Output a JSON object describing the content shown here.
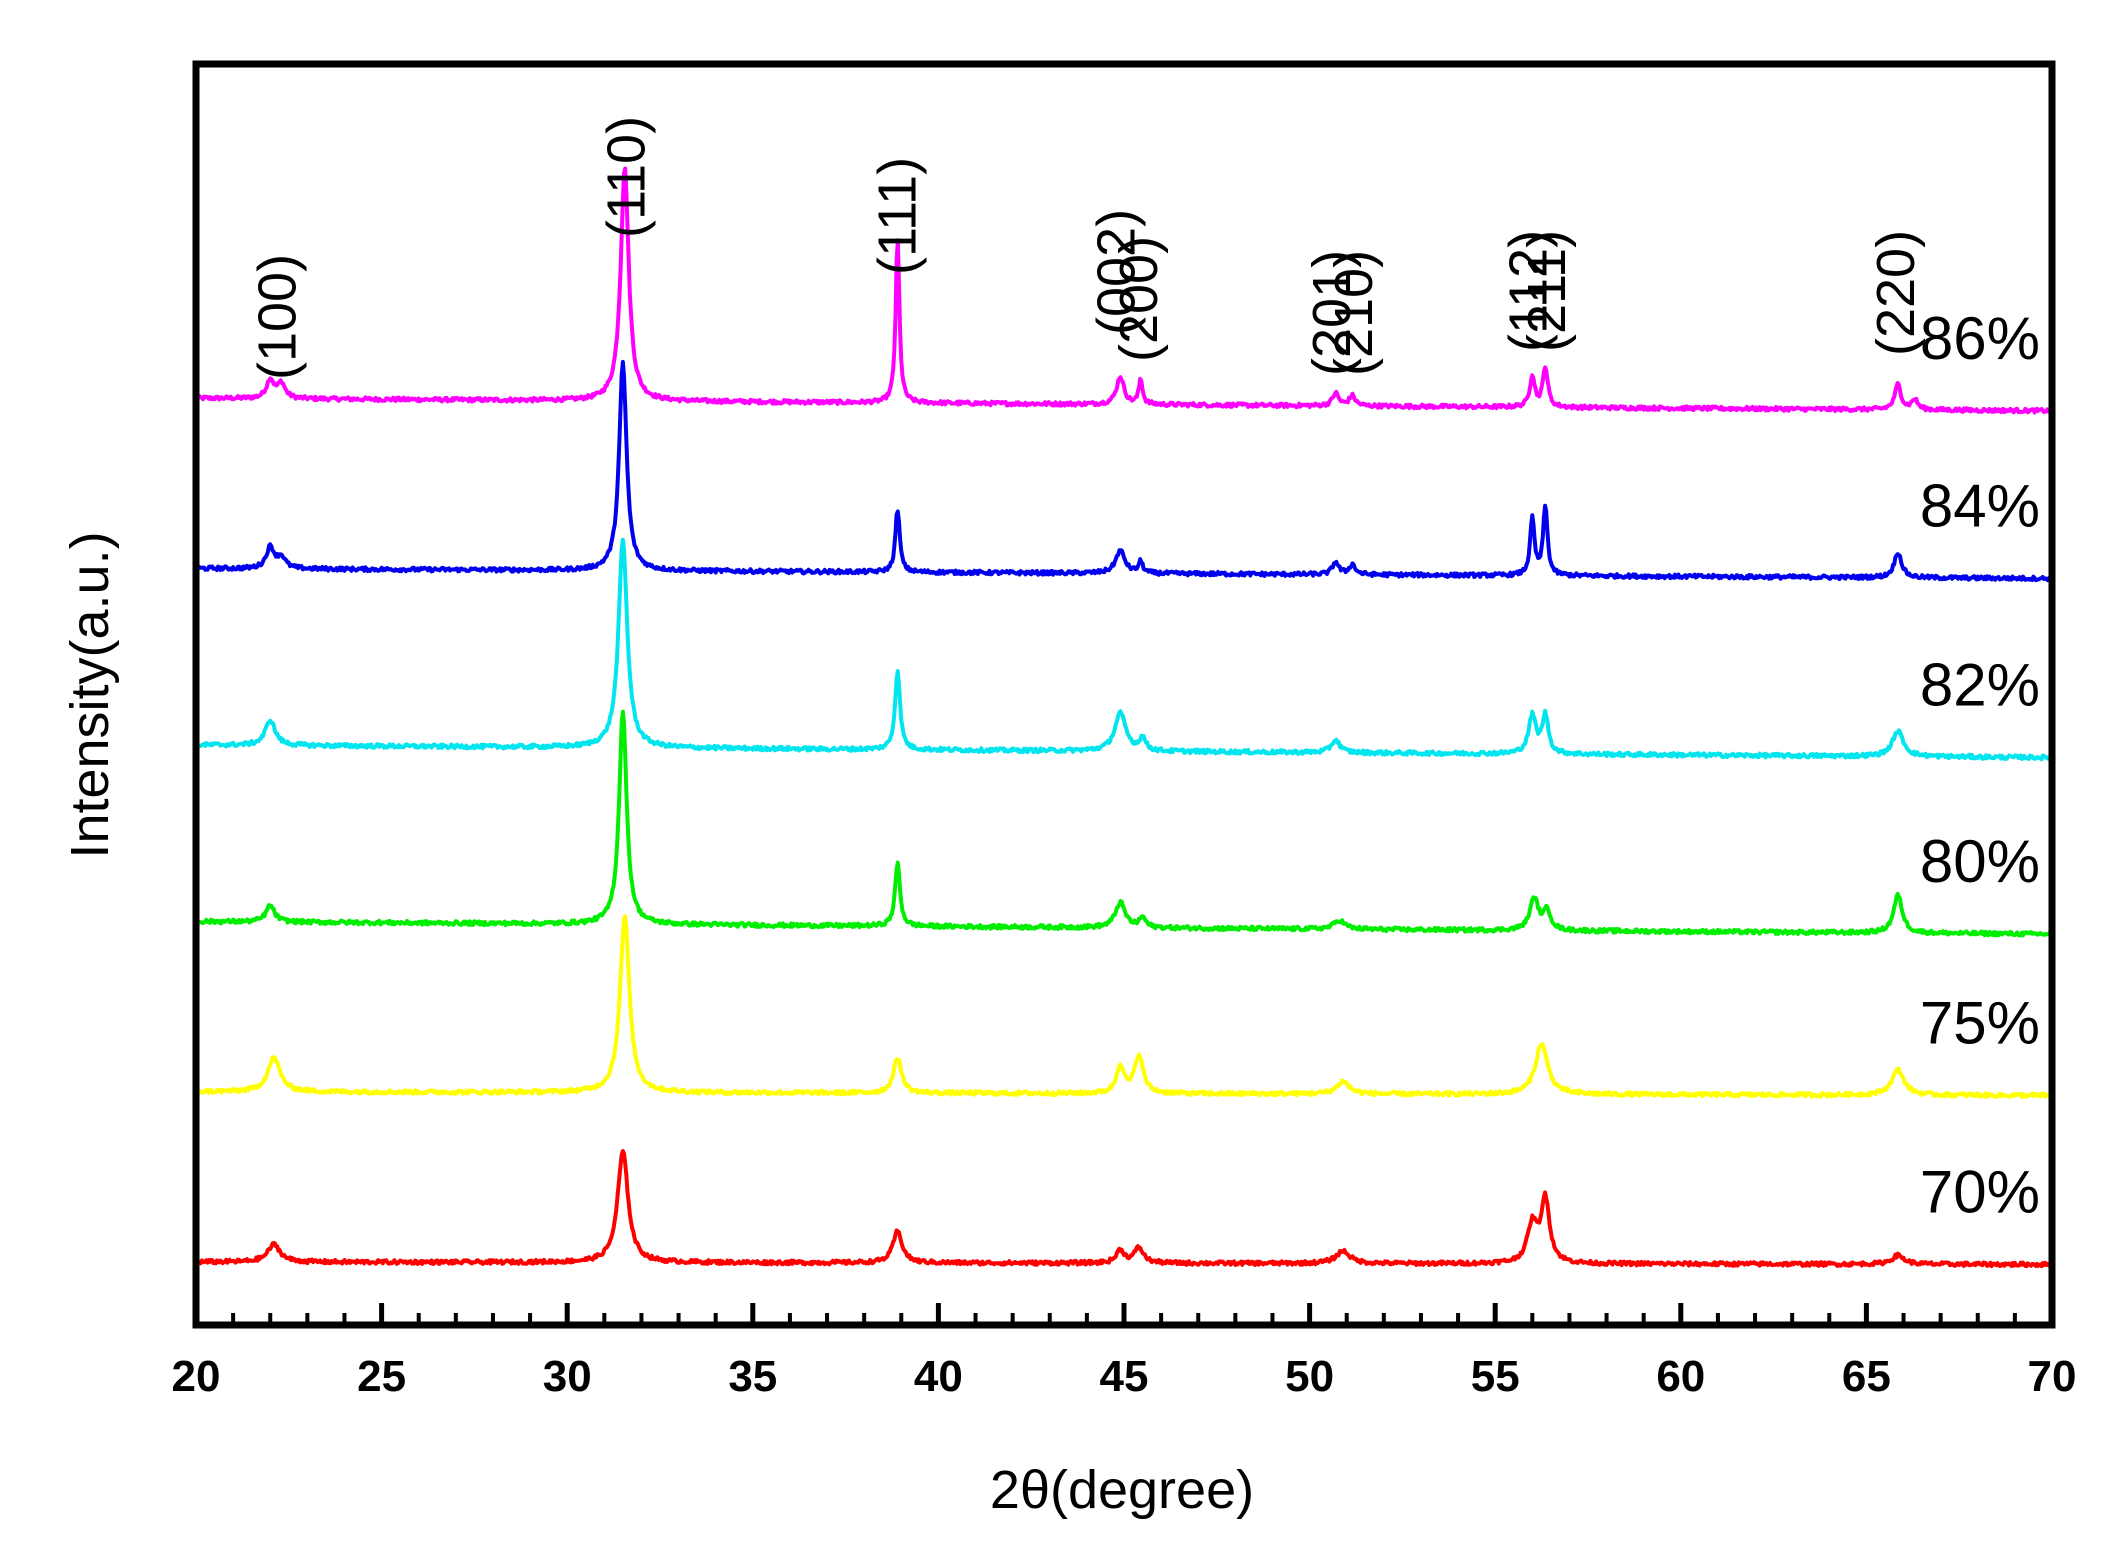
{
  "chart_data": {
    "type": "line",
    "title": "",
    "xlabel": "2θ(degree)",
    "ylabel": "Intensity(a.u.)",
    "xlim": [
      20,
      70
    ],
    "x_major_ticks": [
      "20",
      "25",
      "30",
      "35",
      "40",
      "45",
      "50",
      "55",
      "60",
      "65",
      "70"
    ],
    "x_minor_step": 1,
    "grid": false,
    "legend": "inline labels at right end of each trace",
    "peak_labels": [
      {
        "text": "(100)",
        "two_theta": 22.2
      },
      {
        "text": "(110)",
        "two_theta": 31.6
      },
      {
        "text": "(111)",
        "two_theta": 38.9
      },
      {
        "text": "(002)",
        "two_theta": 44.8
      },
      {
        "text": "(200)",
        "two_theta": 45.4
      },
      {
        "text": "(201)",
        "two_theta": 50.6
      },
      {
        "text": "(210)",
        "two_theta": 51.2
      },
      {
        "text": "(112)",
        "two_theta": 55.9
      },
      {
        "text": "(211)",
        "two_theta": 56.4
      },
      {
        "text": "(220)",
        "two_theta": 65.8
      }
    ],
    "series": [
      {
        "name": "86%",
        "color": "#ff00ff",
        "baseline": 0.735,
        "drift": -0.01,
        "noise": 0.003,
        "peaks": [
          {
            "x": 22.0,
            "h": 0.015,
            "w": 0.12
          },
          {
            "x": 22.3,
            "h": 0.012,
            "w": 0.12
          },
          {
            "x": 31.55,
            "h": 0.185,
            "w": 0.13
          },
          {
            "x": 38.9,
            "h": 0.13,
            "w": 0.06
          },
          {
            "x": 44.9,
            "h": 0.022,
            "w": 0.12
          },
          {
            "x": 45.45,
            "h": 0.02,
            "w": 0.06
          },
          {
            "x": 50.7,
            "h": 0.01,
            "w": 0.1
          },
          {
            "x": 51.15,
            "h": 0.008,
            "w": 0.1
          },
          {
            "x": 56.0,
            "h": 0.025,
            "w": 0.08
          },
          {
            "x": 56.35,
            "h": 0.032,
            "w": 0.08
          },
          {
            "x": 65.85,
            "h": 0.02,
            "w": 0.1
          },
          {
            "x": 66.3,
            "h": 0.008,
            "w": 0.1
          }
        ]
      },
      {
        "name": "84%",
        "color": "#0000ee",
        "baseline": 0.6,
        "drift": -0.008,
        "noise": 0.003,
        "peaks": [
          {
            "x": 22.0,
            "h": 0.017,
            "w": 0.13
          },
          {
            "x": 22.3,
            "h": 0.009,
            "w": 0.13
          },
          {
            "x": 31.5,
            "h": 0.165,
            "w": 0.12
          },
          {
            "x": 38.9,
            "h": 0.05,
            "w": 0.07
          },
          {
            "x": 44.9,
            "h": 0.018,
            "w": 0.15
          },
          {
            "x": 45.45,
            "h": 0.009,
            "w": 0.07
          },
          {
            "x": 50.7,
            "h": 0.01,
            "w": 0.1
          },
          {
            "x": 51.15,
            "h": 0.008,
            "w": 0.1
          },
          {
            "x": 56.0,
            "h": 0.045,
            "w": 0.07
          },
          {
            "x": 56.35,
            "h": 0.055,
            "w": 0.07
          },
          {
            "x": 65.85,
            "h": 0.02,
            "w": 0.12
          }
        ]
      },
      {
        "name": "82%",
        "color": "#00e5ee",
        "baseline": 0.46,
        "drift": -0.01,
        "noise": 0.003,
        "peaks": [
          {
            "x": 22.0,
            "h": 0.02,
            "w": 0.16
          },
          {
            "x": 31.5,
            "h": 0.165,
            "w": 0.14
          },
          {
            "x": 38.9,
            "h": 0.063,
            "w": 0.08
          },
          {
            "x": 44.9,
            "h": 0.03,
            "w": 0.18
          },
          {
            "x": 45.5,
            "h": 0.01,
            "w": 0.1
          },
          {
            "x": 50.7,
            "h": 0.01,
            "w": 0.14
          },
          {
            "x": 56.0,
            "h": 0.03,
            "w": 0.12
          },
          {
            "x": 56.35,
            "h": 0.03,
            "w": 0.1
          },
          {
            "x": 65.85,
            "h": 0.02,
            "w": 0.18
          }
        ]
      },
      {
        "name": "80%",
        "color": "#00ee00",
        "baseline": 0.32,
        "drift": -0.01,
        "noise": 0.003,
        "peaks": [
          {
            "x": 22.0,
            "h": 0.013,
            "w": 0.14
          },
          {
            "x": 31.5,
            "h": 0.17,
            "w": 0.12
          },
          {
            "x": 38.9,
            "h": 0.05,
            "w": 0.08
          },
          {
            "x": 44.9,
            "h": 0.02,
            "w": 0.16
          },
          {
            "x": 45.5,
            "h": 0.008,
            "w": 0.1
          },
          {
            "x": 50.8,
            "h": 0.007,
            "w": 0.18
          },
          {
            "x": 56.05,
            "h": 0.025,
            "w": 0.14
          },
          {
            "x": 56.4,
            "h": 0.015,
            "w": 0.12
          },
          {
            "x": 65.85,
            "h": 0.03,
            "w": 0.14
          }
        ]
      },
      {
        "name": "75%",
        "color": "#ffff00",
        "baseline": 0.185,
        "drift": -0.003,
        "noise": 0.003,
        "peaks": [
          {
            "x": 22.1,
            "h": 0.027,
            "w": 0.2
          },
          {
            "x": 31.55,
            "h": 0.14,
            "w": 0.15
          },
          {
            "x": 38.9,
            "h": 0.028,
            "w": 0.13
          },
          {
            "x": 44.9,
            "h": 0.022,
            "w": 0.12
          },
          {
            "x": 45.4,
            "h": 0.03,
            "w": 0.14
          },
          {
            "x": 50.9,
            "h": 0.01,
            "w": 0.2
          },
          {
            "x": 56.25,
            "h": 0.04,
            "w": 0.2
          },
          {
            "x": 65.85,
            "h": 0.02,
            "w": 0.2
          }
        ]
      },
      {
        "name": "70%",
        "color": "#ff0000",
        "baseline": 0.05,
        "drift": -0.002,
        "noise": 0.003,
        "peaks": [
          {
            "x": 22.1,
            "h": 0.014,
            "w": 0.2
          },
          {
            "x": 31.5,
            "h": 0.088,
            "w": 0.17
          },
          {
            "x": 38.9,
            "h": 0.025,
            "w": 0.15
          },
          {
            "x": 44.9,
            "h": 0.01,
            "w": 0.13
          },
          {
            "x": 45.4,
            "h": 0.012,
            "w": 0.15
          },
          {
            "x": 50.9,
            "h": 0.01,
            "w": 0.22
          },
          {
            "x": 56.0,
            "h": 0.03,
            "w": 0.16
          },
          {
            "x": 56.35,
            "h": 0.05,
            "w": 0.14
          },
          {
            "x": 65.85,
            "h": 0.007,
            "w": 0.2
          }
        ]
      }
    ]
  }
}
